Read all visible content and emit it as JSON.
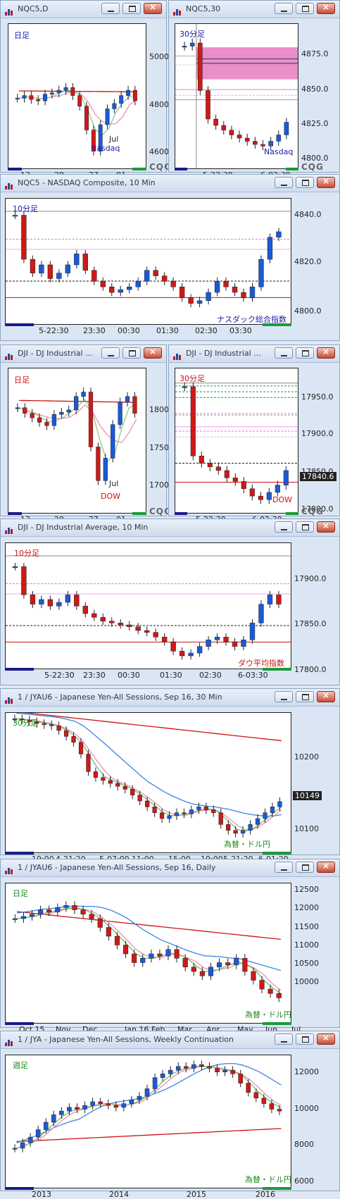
{
  "windows": [
    {
      "title": "NQC5,D",
      "tf": "日足",
      "tf_color": "#1a1aa8",
      "sym": "Nasdaq",
      "sym_color": "#1a1aa8",
      "yticks": [
        "5000.0",
        "4800.0",
        "4600.0"
      ],
      "xticks": [
        "13",
        "20",
        "27",
        "01"
      ],
      "xsub": "Jul"
    },
    {
      "title": "NQC5,30",
      "tf": "30分足",
      "tf_color": "#1a1aa8",
      "sym": "Nasdaq",
      "sym_color": "#1a1aa8",
      "yticks": [
        "4875.0",
        "4850.0",
        "4825.0",
        "4800.0"
      ],
      "xticks": [
        "5-22:30",
        "6-02:30"
      ]
    },
    {
      "title": "NQC5 - NASDAQ Composite, 10 Min",
      "tf": "10分足",
      "tf_color": "#1a1aa8",
      "sym": "ナスダック総合指数",
      "sym_color": "#1a1aa8",
      "yticks": [
        "4840.0",
        "4820.0",
        "4800.0"
      ],
      "xticks": [
        "5-22:30",
        "23:30",
        "00:30",
        "01:30",
        "02:30",
        "03:30"
      ],
      "xtick_last": "6-03:30"
    },
    {
      "title": "DJI - DJ Industrial ...",
      "tf": "日足",
      "tf_color": "#d01010",
      "sym": "DOW",
      "sym_color": "#d01010",
      "yticks": [
        "18000.0",
        "17500.0",
        "17000.0"
      ],
      "xticks": [
        "13",
        "20",
        "27",
        "01"
      ],
      "xsub": "Jul"
    },
    {
      "title": "DJI - DJ Industrial ...",
      "tf": "30分足",
      "tf_color": "#d01010",
      "sym": "DOW",
      "sym_color": "#d01010",
      "yticks": [
        "17950.0",
        "17900.0",
        "17850.0",
        "17800.0"
      ],
      "xticks": [
        "5-22:30",
        "6-02:30"
      ],
      "price_tag": "17840.6"
    },
    {
      "title": "DJI - DJ Industrial Average, 10 Min",
      "tf": "10分足",
      "tf_color": "#d01010",
      "sym": "ダウ平均指数",
      "sym_color": "#d01010",
      "yticks": [
        "17900.0",
        "17850.0",
        "17800.0"
      ],
      "xticks": [
        "5-22:30",
        "23:30",
        "00:30",
        "01:30",
        "02:30",
        "6-03:30"
      ]
    },
    {
      "title": "1 / JYAU6 - Japanese Yen-All Sessions, Sep 16, 30 Min",
      "tf": "30分足",
      "tf_color": "#1a8a1a",
      "sym": "為替・ドル円",
      "sym_color": "#1a8a1a",
      "yticks": [
        "10200",
        "10100"
      ],
      "price_tag": "10149",
      "xticks": [
        "19:00",
        "4-21:20",
        "5-07:00",
        "11:00",
        "15:00",
        "19:00",
        "5-21:20",
        "6-01:20"
      ]
    },
    {
      "title": "1 / JYAU6 - Japanese Yen-All Sessions, Sep 16, Daily",
      "tf": "日足",
      "tf_color": "#1a8a1a",
      "sym": "為替・ドル円",
      "sym_color": "#1a8a1a",
      "yticks": [
        "12500",
        "12000",
        "11500",
        "11000",
        "10500",
        "10000"
      ],
      "xticks": [
        "Oct 15",
        "Nov",
        "Dec",
        "Jan 16",
        "Feb",
        "Mar",
        "Apr",
        "May",
        "Jun",
        "Jul"
      ]
    },
    {
      "title": "1 / JYA - Japanese Yen-All Sessions, Weekly Continuation",
      "tf": "週足",
      "tf_color": "#1a8a1a",
      "sym": "為替・ドル円",
      "sym_color": "#1a8a1a",
      "yticks": [
        "12000",
        "10000",
        "8000",
        "6000"
      ],
      "xticks": [
        "2013",
        "2014",
        "2015",
        "2016"
      ]
    }
  ],
  "cqg": {
    "text": "CQG",
    "accent": "#c2142a"
  },
  "icons": [
    "chart-icon",
    "minimize-icon",
    "maximize-icon",
    "close-icon"
  ],
  "chart_data": [
    {
      "type": "candlestick",
      "title": "NQC5,D",
      "ylim": [
        4550,
        5100
      ],
      "series": [
        {
          "values": [
            4820,
            4830,
            4815,
            4810,
            4835,
            4840,
            4850,
            4860,
            4830,
            4790,
            4700,
            4620,
            4720,
            4780,
            4800,
            4830,
            4850,
            4810
          ]
        }
      ]
    },
    {
      "type": "candlestick",
      "title": "NQC5,30",
      "ylim": [
        4790,
        4882
      ],
      "series": [
        {
          "values": [
            4868,
            4870,
            4840,
            4822,
            4818,
            4815,
            4812,
            4810,
            4808,
            4806,
            4805,
            4808,
            4812,
            4820
          ]
        }
      ]
    },
    {
      "type": "candlestick",
      "title": "NQC5 - NASDAQ Composite, 10 Min",
      "ylim": [
        4796,
        4842
      ],
      "series": [
        {
          "values": [
            4836,
            4820,
            4815,
            4818,
            4813,
            4815,
            4818,
            4822,
            4816,
            4812,
            4810,
            4808,
            4809,
            4810,
            4812,
            4816,
            4814,
            4812,
            4810,
            4806,
            4804,
            4805,
            4808,
            4812,
            4810,
            4808,
            4806,
            4810,
            4820,
            4828,
            4830
          ]
        }
      ]
    },
    {
      "type": "candlestick",
      "title": "DJI - DJ Industrial ...",
      "ylim": [
        16900,
        18200
      ],
      "series": [
        {
          "values": [
            17850,
            17800,
            17760,
            17720,
            17690,
            17790,
            17810,
            17830,
            17950,
            17990,
            17500,
            17200,
            17400,
            17700,
            17900,
            17950,
            17800
          ]
        }
      ]
    },
    {
      "type": "candlestick",
      "title": "DJI - DJ Industrial ... 30",
      "ylim": [
        17780,
        17980
      ],
      "series": [
        {
          "values": [
            17955,
            17860,
            17850,
            17845,
            17840,
            17830,
            17825,
            17815,
            17805,
            17800,
            17810,
            17820,
            17840
          ]
        }
      ]
    },
    {
      "type": "candlestick",
      "title": "DJI - DJ Industrial Average, 10 Min",
      "ylim": [
        17780,
        17915
      ],
      "series": [
        {
          "values": [
            17890,
            17860,
            17850,
            17855,
            17848,
            17852,
            17860,
            17848,
            17840,
            17836,
            17832,
            17830,
            17828,
            17826,
            17822,
            17820,
            17815,
            17810,
            17800,
            17795,
            17798,
            17805,
            17812,
            17815,
            17810,
            17805,
            17812,
            17830,
            17850,
            17860,
            17850
          ]
        }
      ]
    },
    {
      "type": "candlestick",
      "title": "1 / JYAU6 30 Min",
      "ylim": [
        10060,
        10300
      ],
      "series": [
        {
          "values": [
            10290,
            10288,
            10285,
            10282,
            10280,
            10278,
            10270,
            10260,
            10250,
            10230,
            10200,
            10190,
            10185,
            10180,
            10175,
            10170,
            10160,
            10150,
            10140,
            10130,
            10120,
            10125,
            10130,
            10128,
            10135,
            10140,
            10135,
            10130,
            10110,
            10100,
            10095,
            10100,
            10110,
            10120,
            10130,
            10140,
            10149
          ]
        }
      ]
    },
    {
      "type": "candlestick",
      "title": "1 / JYAU6 Daily",
      "ylim": [
        9600,
        12800
      ],
      "series": [
        {
          "values": [
            12000,
            12050,
            12100,
            12200,
            12150,
            12250,
            12300,
            12200,
            12100,
            12000,
            11800,
            11600,
            11400,
            11200,
            11000,
            11100,
            11200,
            11150,
            11300,
            11100,
            10900,
            10800,
            10700,
            10900,
            11000,
            10950,
            11100,
            10800,
            10600,
            10400,
            10300,
            10200
          ]
        }
      ]
    },
    {
      "type": "candlestick",
      "title": "1 / JYA Weekly",
      "ylim": [
        5800,
        13000
      ],
      "series": [
        {
          "values": [
            8000,
            8300,
            8600,
            9000,
            9400,
            9800,
            10000,
            10200,
            10100,
            10300,
            10500,
            10400,
            10300,
            10200,
            10400,
            10600,
            10800,
            11200,
            11800,
            12000,
            12200,
            12400,
            12300,
            12500,
            12400,
            12300,
            12100,
            12200,
            12000,
            11500,
            11000,
            10700,
            10400,
            10100,
            10000
          ]
        }
      ]
    }
  ]
}
